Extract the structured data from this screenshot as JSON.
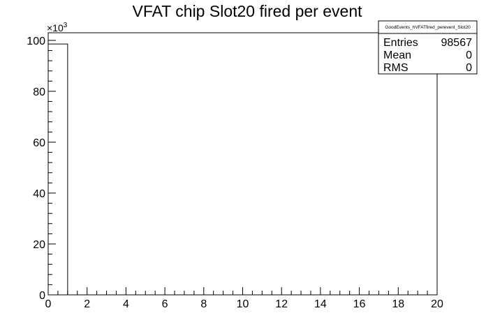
{
  "chart_data": {
    "type": "bar",
    "title": "VFAT chip Slot20 fired per event",
    "xlabel": "",
    "ylabel": "",
    "x_bins": [
      [
        0,
        1
      ]
    ],
    "values": [
      98567
    ],
    "xlim": [
      0,
      20
    ],
    "ylim": [
      0,
      103000
    ],
    "x_ticks": [
      "0",
      "2",
      "4",
      "6",
      "8",
      "10",
      "12",
      "14",
      "16",
      "18",
      "20"
    ],
    "y_ticks": [
      "0",
      "20",
      "40",
      "60",
      "80",
      "100"
    ],
    "y_multiplier": "×10",
    "y_multiplier_exponent": "3",
    "grid": false,
    "stats_box": {
      "name": "GoodEvents_hVFATfired_perevent_Slot20",
      "rows": [
        {
          "label": "Entries",
          "value": "98567"
        },
        {
          "label": "Mean",
          "value": "0"
        },
        {
          "label": "RMS",
          "value": "0"
        }
      ]
    }
  }
}
